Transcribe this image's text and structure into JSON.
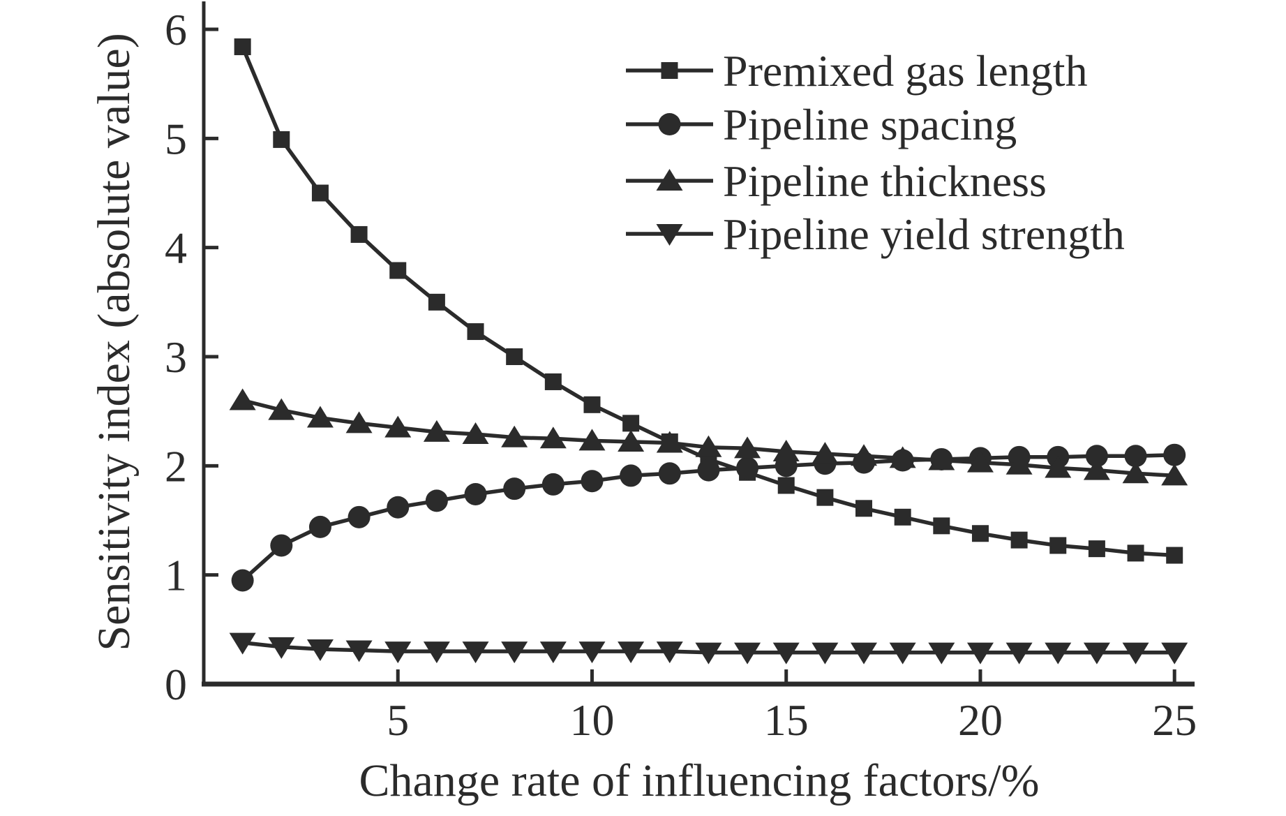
{
  "figure": {
    "background": "#ffffff",
    "ink": "#2b2b2b"
  },
  "chart_data": {
    "type": "line",
    "title": "",
    "xlabel": "Change rate of influencing factors/%",
    "ylabel": "Sensitivity index (absolute value)",
    "x_ticks": [
      5,
      10,
      15,
      20,
      25
    ],
    "y_ticks": [
      0,
      1,
      2,
      3,
      4,
      5,
      6
    ],
    "xlim": [
      0,
      25.5
    ],
    "ylim": [
      0,
      6.24
    ],
    "grid": false,
    "legend_position": "top-right",
    "x": [
      1,
      2,
      3,
      4,
      5,
      6,
      7,
      8,
      9,
      10,
      11,
      12,
      13,
      14,
      15,
      16,
      17,
      18,
      19,
      20,
      21,
      22,
      23,
      24,
      25
    ],
    "series": [
      {
        "name": "Premixed gas length",
        "marker": "square",
        "values": [
          5.84,
          4.99,
          4.5,
          4.12,
          3.79,
          3.5,
          3.23,
          3.0,
          2.77,
          2.56,
          2.39,
          2.22,
          2.06,
          1.94,
          1.82,
          1.71,
          1.61,
          1.53,
          1.45,
          1.38,
          1.32,
          1.27,
          1.24,
          1.2,
          1.18
        ]
      },
      {
        "name": "Pipeline spacing",
        "marker": "circle",
        "values": [
          0.95,
          1.27,
          1.44,
          1.53,
          1.62,
          1.68,
          1.74,
          1.79,
          1.83,
          1.86,
          1.91,
          1.93,
          1.96,
          1.98,
          2.0,
          2.02,
          2.03,
          2.05,
          2.06,
          2.07,
          2.08,
          2.08,
          2.09,
          2.09,
          2.1
        ]
      },
      {
        "name": "Pipeline thickness",
        "marker": "triangle-up",
        "values": [
          2.6,
          2.51,
          2.44,
          2.39,
          2.35,
          2.31,
          2.29,
          2.26,
          2.25,
          2.23,
          2.22,
          2.21,
          2.17,
          2.16,
          2.13,
          2.11,
          2.09,
          2.07,
          2.05,
          2.03,
          2.01,
          1.98,
          1.96,
          1.93,
          1.91
        ]
      },
      {
        "name": "Pipeline yield strength",
        "marker": "triangle-down",
        "values": [
          0.38,
          0.34,
          0.32,
          0.31,
          0.3,
          0.3,
          0.3,
          0.3,
          0.3,
          0.3,
          0.3,
          0.3,
          0.29,
          0.29,
          0.29,
          0.29,
          0.29,
          0.29,
          0.29,
          0.29,
          0.29,
          0.29,
          0.29,
          0.29,
          0.29
        ]
      }
    ]
  }
}
